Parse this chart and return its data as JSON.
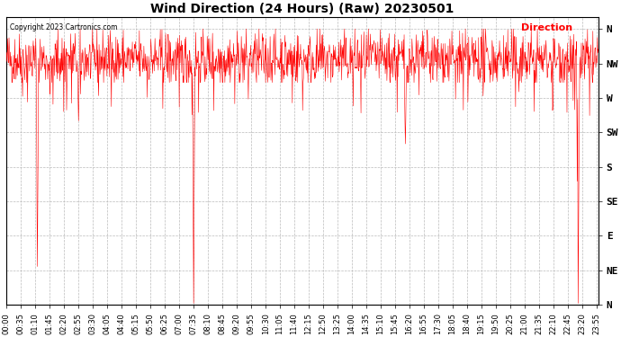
{
  "title": "Wind Direction (24 Hours) (Raw) 20230501",
  "copyright_text": "Copyright 2023 Cartronics.com",
  "legend_text": "Direction",
  "legend_color": "#ff0000",
  "line_color": "#ff0000",
  "background_color": "#ffffff",
  "grid_color": "#bbbbbb",
  "ytick_labels": [
    "N",
    "NW",
    "W",
    "SW",
    "S",
    "SE",
    "E",
    "NE",
    "N"
  ],
  "ytick_values": [
    360,
    315,
    270,
    225,
    180,
    135,
    90,
    45,
    0
  ],
  "ylim": [
    0,
    375
  ],
  "title_fontsize": 10,
  "tick_fontsize": 6,
  "xtick_interval_minutes": 35,
  "total_minutes": 1440,
  "seed": 42,
  "base_direction": 320,
  "base_noise": 18,
  "figwidth": 6.9,
  "figheight": 3.75,
  "dpi": 100
}
